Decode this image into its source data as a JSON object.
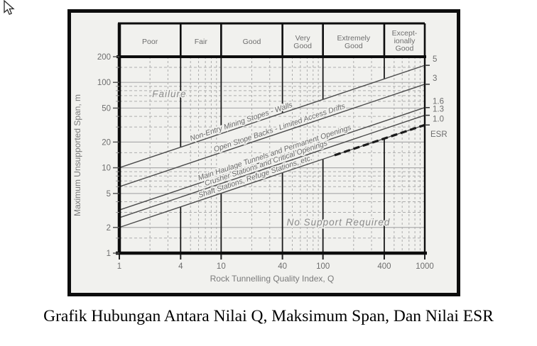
{
  "caption": "Grafik Hubungan Antara Nilai Q, Maksimum Span, Dan Nilai ESR",
  "colors": {
    "paper": "#f1f1ee",
    "frame": "#0d0d0d",
    "grid": "#adadad",
    "line": "#4a4a4a",
    "boundary": "#1a1a1a",
    "text_gray": "#777777",
    "label_gray": "#6a6a6a"
  },
  "chart_data": {
    "type": "line",
    "title": "",
    "x_axis": {
      "label": "Rock Tunnelling Quality Index, Q",
      "scale": "log",
      "range": [
        1,
        1000
      ],
      "ticks": [
        1,
        4,
        10,
        40,
        100,
        400,
        1000
      ]
    },
    "y_axis": {
      "label": "Maximum Unsupported Span, m",
      "scale": "log",
      "range": [
        1,
        200
      ],
      "ticks": [
        200,
        100,
        50,
        20,
        10,
        5,
        2,
        1
      ]
    },
    "right_axis": {
      "label": "ESR",
      "ticks": [
        "5",
        "3",
        "1.6",
        "1.3",
        "1.0"
      ]
    },
    "quality_categories": [
      {
        "label": "Poor",
        "lines": [
          "Poor"
        ],
        "q_range": [
          1,
          4
        ]
      },
      {
        "label": "Fair",
        "lines": [
          "Fair"
        ],
        "q_range": [
          4,
          10
        ]
      },
      {
        "label": "Good",
        "lines": [
          "Good"
        ],
        "q_range": [
          10,
          40
        ]
      },
      {
        "label": "Very Good",
        "lines": [
          "Very",
          "Good"
        ],
        "q_range": [
          40,
          100
        ]
      },
      {
        "label": "Extremely Good",
        "lines": [
          "Extremely",
          "Good"
        ],
        "q_range": [
          100,
          400
        ]
      },
      {
        "label": "Exceptionally Good",
        "lines": [
          "Except-",
          "ionally",
          "Good"
        ],
        "q_range": [
          400,
          1000
        ]
      }
    ],
    "series": [
      {
        "name": "Non-Entry Mining Stopes  -  Walls",
        "esr": 5.0,
        "points": [
          [
            1,
            10.0
          ],
          [
            1000,
            158.5
          ]
        ],
        "label_q": 16
      },
      {
        "name": "Open Stope Backs - Limited Access Drifts",
        "esr": 3.0,
        "points": [
          [
            1,
            6.0
          ],
          [
            1000,
            95.1
          ]
        ],
        "label_q": 38
      },
      {
        "name": "Main Haulage Tunnels and Permanent Openings",
        "esr": 1.6,
        "points": [
          [
            1,
            3.2
          ],
          [
            1000,
            50.7
          ]
        ],
        "label_q": 34
      },
      {
        "name": "Crusher Stations and Critical Openings",
        "esr": 1.3,
        "points": [
          [
            1,
            2.6
          ],
          [
            1000,
            41.2
          ]
        ],
        "label_q": 28
      },
      {
        "name": "Shaft Stations, Refuge Stations, etc.",
        "esr": 1.0,
        "points": [
          [
            1,
            2.0
          ],
          [
            1000,
            31.7
          ]
        ],
        "label_q": 22
      }
    ],
    "bold_dashed_segment": {
      "esr": 1.0,
      "q_from": 130,
      "q_to": 1000
    },
    "region_labels": [
      {
        "text": "Failure",
        "at_q": 3.1,
        "at_span": 74
      },
      {
        "text": "No Support Required",
        "at_q": 142,
        "at_span": 2.32
      }
    ],
    "grid": {
      "x_minor": [
        2,
        3,
        5,
        6,
        7,
        8,
        9,
        20,
        30,
        50,
        60,
        70,
        80,
        90,
        200,
        300,
        500,
        600,
        700,
        800,
        900
      ],
      "y_major": [
        2,
        5,
        10,
        20,
        50,
        100
      ],
      "y_minor": [
        1.5,
        3,
        4,
        6,
        7,
        8,
        9,
        15,
        30,
        40,
        60,
        70,
        80,
        90,
        150
      ]
    },
    "layout_hints": {
      "grid": true,
      "log_log": true,
      "legend": "labels-on-lines"
    }
  }
}
